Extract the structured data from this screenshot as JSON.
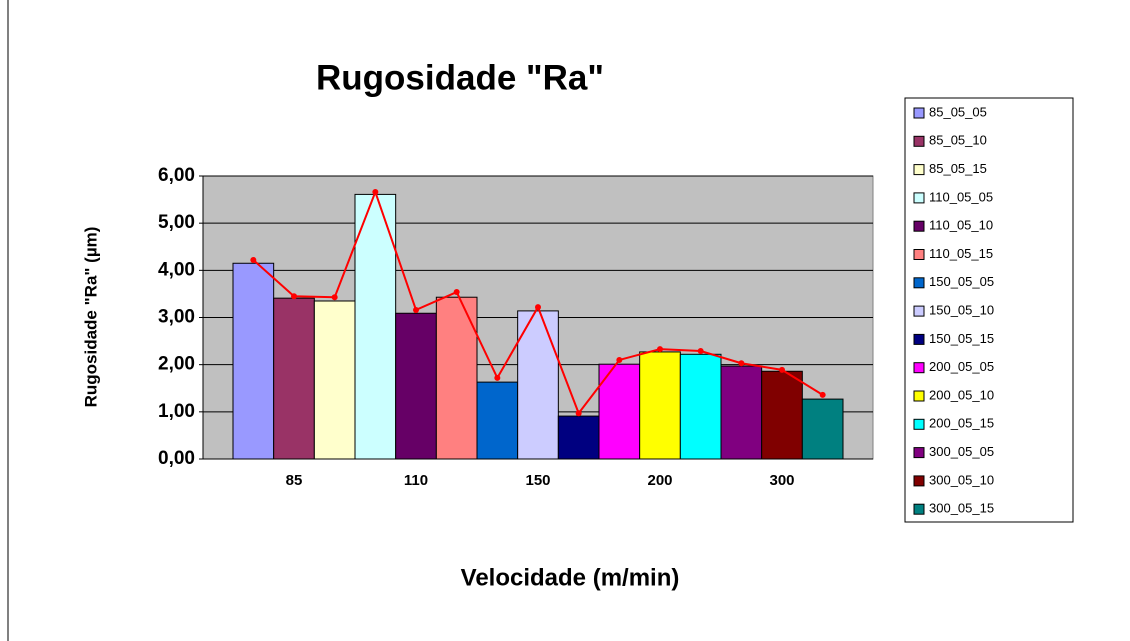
{
  "chart_data": {
    "type": "bar",
    "title": "Rugosidade \"Ra\"",
    "ylabel": "Rugosidade \"Ra\" (µm)",
    "xlabel": "Velocidade (m/min)",
    "categories": [
      null,
      "85",
      null,
      null,
      "110",
      null,
      null,
      "150",
      null,
      null,
      "200",
      null,
      null,
      "300",
      null
    ],
    "series": [
      {
        "name": "85_05_05",
        "color": "#9999FF"
      },
      {
        "name": "85_05_10",
        "color": "#993366"
      },
      {
        "name": "85_05_15",
        "color": "#FFFFCC"
      },
      {
        "name": "110_05_05",
        "color": "#CCFFFF"
      },
      {
        "name": "110_05_10",
        "color": "#660066"
      },
      {
        "name": "110_05_15",
        "color": "#FF8080"
      },
      {
        "name": "150_05_05",
        "color": "#0066CC"
      },
      {
        "name": "150_05_10",
        "color": "#CCCCFF"
      },
      {
        "name": "150_05_15",
        "color": "#000080"
      },
      {
        "name": "200_05_05",
        "color": "#FF00FF"
      },
      {
        "name": "200_05_10",
        "color": "#FFFF00"
      },
      {
        "name": "200_05_15",
        "color": "#00FFFF"
      },
      {
        "name": "300_05_05",
        "color": "#800080"
      },
      {
        "name": "300_05_10",
        "color": "#800000"
      },
      {
        "name": "300_05_15",
        "color": "#008080"
      }
    ],
    "values": [
      4.15,
      3.41,
      3.35,
      5.61,
      3.09,
      3.43,
      1.63,
      3.14,
      0.91,
      2.01,
      2.27,
      2.22,
      1.97,
      1.86,
      1.27
    ],
    "line": {
      "color": "#FF0000",
      "values": [
        4.22,
        3.45,
        3.43,
        5.66,
        3.16,
        3.54,
        1.72,
        3.22,
        0.97,
        2.1,
        2.33,
        2.29,
        2.03,
        1.89,
        1.36
      ]
    },
    "ylim": [
      0,
      6
    ],
    "yticks": [
      {
        "value": 0,
        "label": "0,00"
      },
      {
        "value": 1,
        "label": "1,00"
      },
      {
        "value": 2,
        "label": "2,00"
      },
      {
        "value": 3,
        "label": "3,00"
      },
      {
        "value": 4,
        "label": "4,00"
      },
      {
        "value": 5,
        "label": "5,00"
      },
      {
        "value": 6,
        "label": "6,00"
      }
    ],
    "grid": true,
    "plot_color": "#C0C0C0",
    "legend": "right"
  }
}
